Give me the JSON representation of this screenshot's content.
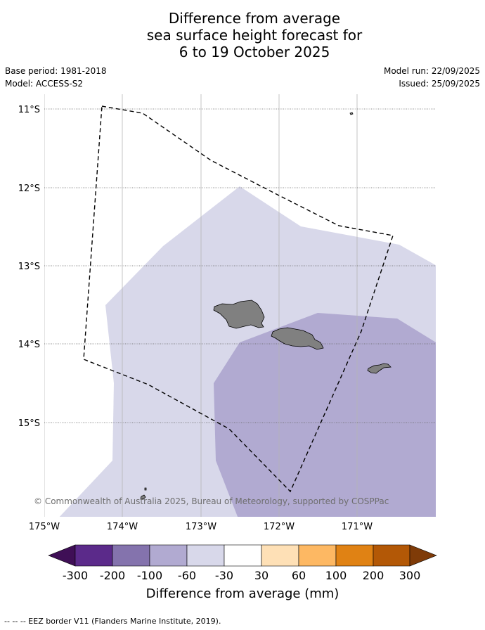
{
  "title": {
    "line1": "Difference from average",
    "line2": "sea surface height forecast for",
    "line3": "6 to 19 October 2025"
  },
  "meta": {
    "base_period": "Base period: 1981-2018",
    "model": "Model: ACCESS-S2",
    "model_run": "Model run: 22/09/2025",
    "issued": "Issued: 25/09/2025"
  },
  "map": {
    "lat_labels": [
      "11°S",
      "12°S",
      "13°S",
      "14°S",
      "15°S"
    ],
    "lon_labels": [
      "175°W",
      "174°W",
      "173°W",
      "172°W",
      "171°W"
    ],
    "credit": "© Commonwealth of Australia 2025, Bureau of Meteorology, supported by COSPPac",
    "land_color": "#808080"
  },
  "legend": {
    "title": "Difference from average (mm)",
    "tick_labels": [
      "-300",
      "-200",
      "-100",
      "-60",
      "-30",
      "30",
      "60",
      "100",
      "200",
      "300"
    ],
    "colors": [
      "#3f0f56",
      "#5b2a8a",
      "#8473ad",
      "#b1aad1",
      "#d8d8ea",
      "#ffffff",
      "#fee0b6",
      "#fdb863",
      "#e08214",
      "#b35806",
      "#7f3b08"
    ]
  },
  "footnote": "--  --  -- EEZ border V11 (Flanders Marine Institute, 2019)."
}
